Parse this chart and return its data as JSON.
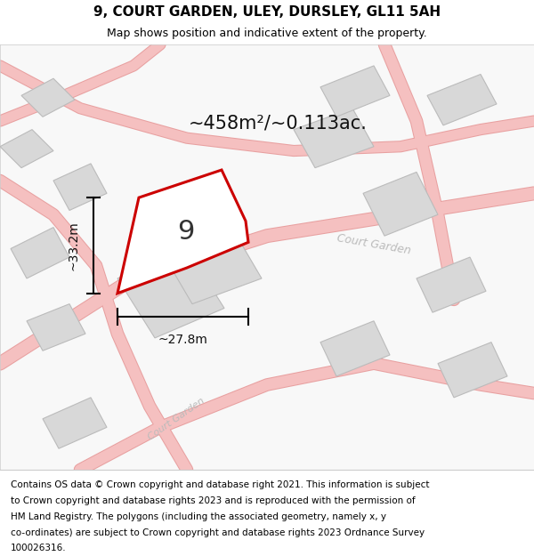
{
  "title": "9, COURT GARDEN, ULEY, DURSLEY, GL11 5AH",
  "subtitle": "Map shows position and indicative extent of the property.",
  "area_label": "~458m²/~0.113ac.",
  "width_label": "~27.8m",
  "height_label": "~33.2m",
  "property_number": "9",
  "footer_lines": [
    "Contains OS data © Crown copyright and database right 2021. This information is subject",
    "to Crown copyright and database rights 2023 and is reproduced with the permission of",
    "HM Land Registry. The polygons (including the associated geometry, namely x, y",
    "co-ordinates) are subject to Crown copyright and database rights 2023 Ordnance Survey",
    "100026316."
  ],
  "map_bg": "#f8f8f8",
  "title_fontsize": 11,
  "subtitle_fontsize": 9,
  "footer_fontsize": 7.5,
  "area_fontsize": 15,
  "number_fontsize": 22,
  "dim_fontsize": 10
}
